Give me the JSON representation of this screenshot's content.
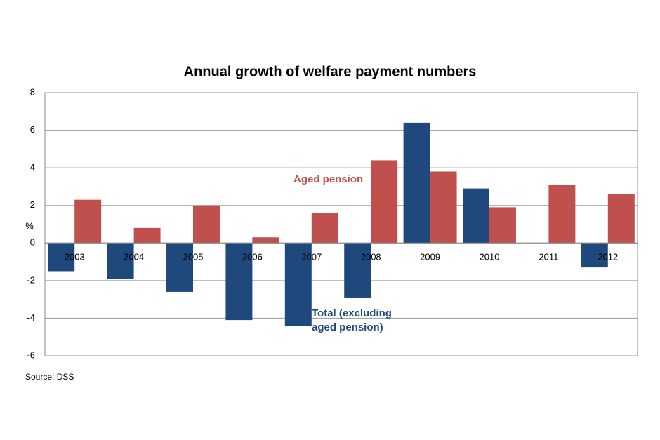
{
  "chart_data": {
    "type": "bar",
    "title": "Annual growth of welfare payment numbers",
    "y_label": "%",
    "source": "Source: DSS",
    "categories": [
      "2003",
      "2004",
      "2005",
      "2006",
      "2007",
      "2008",
      "2009",
      "2010",
      "2011",
      "2012"
    ],
    "series": [
      {
        "name": "Total (excluding aged pension)",
        "color": "#1f497d",
        "values": [
          -1.5,
          -1.9,
          -2.6,
          -4.1,
          -4.4,
          -2.9,
          6.4,
          2.9,
          null,
          -1.3
        ]
      },
      {
        "name": "Aged pension",
        "color": "#c0504d",
        "values": [
          2.3,
          0.8,
          2.0,
          0.3,
          1.6,
          4.4,
          3.8,
          1.9,
          3.1,
          2.6
        ]
      }
    ],
    "ylim": [
      -6,
      8
    ],
    "yticks": [
      -6,
      -4,
      -2,
      0,
      2,
      4,
      6,
      8
    ],
    "grid": true
  }
}
